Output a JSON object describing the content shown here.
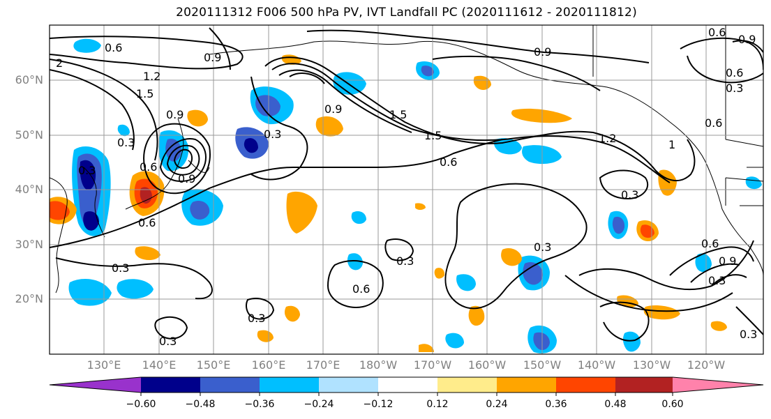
{
  "title": "2020111312 F006 500 hPa PV, IVT Landfall PC (2020111612 - 2020111812)",
  "lat_labels": [
    "60°N",
    "50°N",
    "40°N",
    "30°N",
    "20°N"
  ],
  "lon_labels": [
    "130°E",
    "140°E",
    "150°E",
    "160°E",
    "170°E",
    "180°W",
    "170°W",
    "160°W",
    "150°W",
    "140°W",
    "130°W",
    "120°W"
  ],
  "colorbar": {
    "ticks": [
      "−0.60",
      "−0.48",
      "−0.36",
      "−0.24",
      "−0.12",
      "0.12",
      "0.24",
      "0.36",
      "0.48",
      "0.60"
    ],
    "colors": [
      "#9932cc",
      "#00008b",
      "#3a5fcd",
      "#00bfff",
      "#b0e2ff",
      "#ffffff",
      "#ffec8b",
      "#ffa500",
      "#ff4500",
      "#b22222",
      "#ff82ab"
    ]
  },
  "contour_labels": [
    "0.6",
    "0.9",
    "1.2",
    "1.5",
    "0.3",
    "0.9",
    "1.5",
    "0.6",
    "1.2",
    "0.9",
    "0.6",
    "0.3",
    "0.3",
    "0.3",
    "0.6",
    "0.3",
    "0.3",
    "0.6",
    "0.3",
    "0.6",
    "0.9",
    "0.6",
    "0.9",
    "0.3",
    "1.5",
    "0.3",
    "0.9",
    "1",
    "0.6",
    "0.3",
    "2",
    "0.3",
    "0.3",
    "0.6",
    "0.9"
  ]
}
